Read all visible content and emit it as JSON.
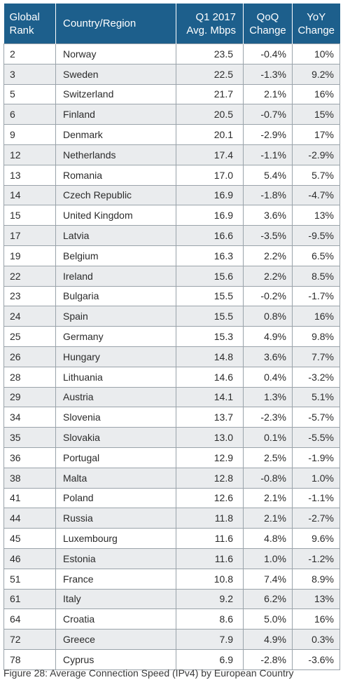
{
  "table": {
    "headers": {
      "rank_line1": "Global",
      "rank_line2": "Rank",
      "country": "Country/Region",
      "speed_line1": "Q1 2017",
      "speed_line2": "Avg. Mbps",
      "qoq_line1": "QoQ",
      "qoq_line2": "Change",
      "yoy_line1": "YoY",
      "yoy_line2": "Change"
    },
    "rows": [
      {
        "rank": "2",
        "country": "Norway",
        "speed": "23.5",
        "qoq": "-0.4%",
        "yoy": "10%"
      },
      {
        "rank": "3",
        "country": "Sweden",
        "speed": "22.5",
        "qoq": "-1.3%",
        "yoy": "9.2%"
      },
      {
        "rank": "5",
        "country": "Switzerland",
        "speed": "21.7",
        "qoq": "2.1%",
        "yoy": "16%"
      },
      {
        "rank": "6",
        "country": "Finland",
        "speed": "20.5",
        "qoq": "-0.7%",
        "yoy": "15%"
      },
      {
        "rank": "9",
        "country": "Denmark",
        "speed": "20.1",
        "qoq": "-2.9%",
        "yoy": "17%"
      },
      {
        "rank": "12",
        "country": "Netherlands",
        "speed": "17.4",
        "qoq": "-1.1%",
        "yoy": "-2.9%"
      },
      {
        "rank": "13",
        "country": "Romania",
        "speed": "17.0",
        "qoq": "5.4%",
        "yoy": "5.7%"
      },
      {
        "rank": "14",
        "country": "Czech Republic",
        "speed": "16.9",
        "qoq": "-1.8%",
        "yoy": "-4.7%"
      },
      {
        "rank": "15",
        "country": "United Kingdom",
        "speed": "16.9",
        "qoq": "3.6%",
        "yoy": "13%"
      },
      {
        "rank": "17",
        "country": "Latvia",
        "speed": "16.6",
        "qoq": "-3.5%",
        "yoy": "-9.5%"
      },
      {
        "rank": "19",
        "country": "Belgium",
        "speed": "16.3",
        "qoq": "2.2%",
        "yoy": "6.5%"
      },
      {
        "rank": "22",
        "country": "Ireland",
        "speed": "15.6",
        "qoq": "2.2%",
        "yoy": "8.5%"
      },
      {
        "rank": "23",
        "country": "Bulgaria",
        "speed": "15.5",
        "qoq": "-0.2%",
        "yoy": "-1.7%"
      },
      {
        "rank": "24",
        "country": "Spain",
        "speed": "15.5",
        "qoq": "0.8%",
        "yoy": "16%"
      },
      {
        "rank": "25",
        "country": "Germany",
        "speed": "15.3",
        "qoq": "4.9%",
        "yoy": "9.8%"
      },
      {
        "rank": "26",
        "country": "Hungary",
        "speed": "14.8",
        "qoq": "3.6%",
        "yoy": "7.7%"
      },
      {
        "rank": "28",
        "country": "Lithuania",
        "speed": "14.6",
        "qoq": "0.4%",
        "yoy": "-3.2%"
      },
      {
        "rank": "29",
        "country": "Austria",
        "speed": "14.1",
        "qoq": "1.3%",
        "yoy": "5.1%"
      },
      {
        "rank": "34",
        "country": "Slovenia",
        "speed": "13.7",
        "qoq": "-2.3%",
        "yoy": "-5.7%"
      },
      {
        "rank": "35",
        "country": "Slovakia",
        "speed": "13.0",
        "qoq": "0.1%",
        "yoy": "-5.5%"
      },
      {
        "rank": "36",
        "country": "Portugal",
        "speed": "12.9",
        "qoq": "2.5%",
        "yoy": "-1.9%"
      },
      {
        "rank": "38",
        "country": "Malta",
        "speed": "12.8",
        "qoq": "-0.8%",
        "yoy": "1.0%"
      },
      {
        "rank": "41",
        "country": "Poland",
        "speed": "12.6",
        "qoq": "2.1%",
        "yoy": "-1.1%"
      },
      {
        "rank": "44",
        "country": "Russia",
        "speed": "11.8",
        "qoq": "2.1%",
        "yoy": "-2.7%"
      },
      {
        "rank": "45",
        "country": "Luxembourg",
        "speed": "11.6",
        "qoq": "4.8%",
        "yoy": "9.6%"
      },
      {
        "rank": "46",
        "country": "Estonia",
        "speed": "11.6",
        "qoq": "1.0%",
        "yoy": "-1.2%"
      },
      {
        "rank": "51",
        "country": "France",
        "speed": "10.8",
        "qoq": "7.4%",
        "yoy": "8.9%"
      },
      {
        "rank": "61",
        "country": "Italy",
        "speed": "9.2",
        "qoq": "6.2%",
        "yoy": "13%"
      },
      {
        "rank": "64",
        "country": "Croatia",
        "speed": "8.6",
        "qoq": "5.0%",
        "yoy": "16%"
      },
      {
        "rank": "72",
        "country": "Greece",
        "speed": "7.9",
        "qoq": "4.9%",
        "yoy": "0.3%"
      },
      {
        "rank": "78",
        "country": "Cyprus",
        "speed": "6.9",
        "qoq": "-2.8%",
        "yoy": "-3.6%"
      }
    ]
  },
  "caption": "Figure 28: Average Connection Speed (IPv4) by European Country",
  "colors": {
    "header_bg": "#1d5f8c",
    "stripe_bg": "#eaecee",
    "border": "#9aa3aa"
  }
}
